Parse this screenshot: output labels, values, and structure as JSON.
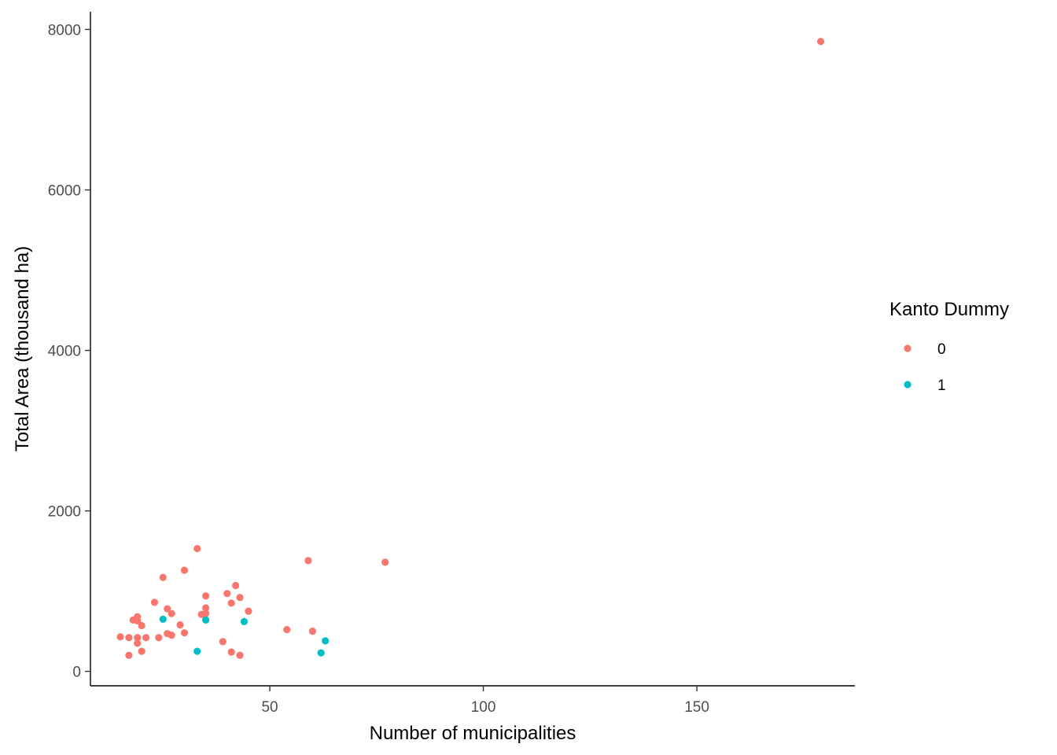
{
  "chart_data": {
    "type": "scatter",
    "xlabel": "Number of municipalities",
    "ylabel": "Total Area (thousand ha)",
    "xlim": [
      8,
      187
    ],
    "ylim": [
      -180,
      8220
    ],
    "x_ticks": [
      50,
      100,
      150
    ],
    "y_ticks": [
      0,
      2000,
      4000,
      6000,
      8000
    ],
    "grid": false,
    "legend": {
      "title": "Kanto Dummy",
      "position": "right"
    },
    "series": [
      {
        "name": "0",
        "color": "#F8766D",
        "points": [
          [
            15,
            430
          ],
          [
            17,
            200
          ],
          [
            17,
            420
          ],
          [
            18,
            640
          ],
          [
            19,
            680
          ],
          [
            19,
            630
          ],
          [
            19,
            420
          ],
          [
            19,
            350
          ],
          [
            20,
            570
          ],
          [
            20,
            250
          ],
          [
            21,
            420
          ],
          [
            23,
            860
          ],
          [
            24,
            420
          ],
          [
            25,
            1170
          ],
          [
            26,
            780
          ],
          [
            26,
            470
          ],
          [
            27,
            720
          ],
          [
            27,
            450
          ],
          [
            29,
            580
          ],
          [
            30,
            480
          ],
          [
            30,
            1260
          ],
          [
            33,
            1530
          ],
          [
            34,
            710
          ],
          [
            35,
            940
          ],
          [
            35,
            790
          ],
          [
            35,
            720
          ],
          [
            39,
            370
          ],
          [
            40,
            970
          ],
          [
            41,
            850
          ],
          [
            41,
            240
          ],
          [
            42,
            1070
          ],
          [
            43,
            920
          ],
          [
            43,
            200
          ],
          [
            45,
            750
          ],
          [
            54,
            520
          ],
          [
            59,
            1380
          ],
          [
            60,
            500
          ],
          [
            77,
            1360
          ],
          [
            179,
            7850
          ]
        ]
      },
      {
        "name": "1",
        "color": "#00BFC4",
        "points": [
          [
            25,
            650
          ],
          [
            33,
            250
          ],
          [
            35,
            640
          ],
          [
            44,
            620
          ],
          [
            62,
            230
          ],
          [
            63,
            380
          ]
        ]
      }
    ]
  }
}
